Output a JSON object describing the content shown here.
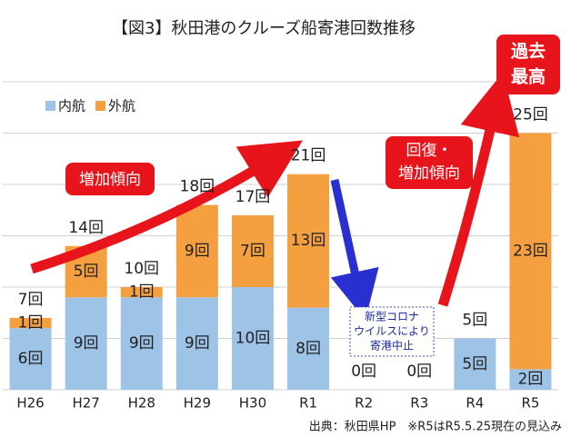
{
  "chart_data": {
    "type": "stacked-bar",
    "title": "【図3】秋田港のクルーズ船寄港回数推移",
    "categories": [
      "H26",
      "H27",
      "H28",
      "H29",
      "H30",
      "R1",
      "R2",
      "R3",
      "R4",
      "R5"
    ],
    "series": [
      {
        "name": "内航",
        "color": "#9dc3e6",
        "values": [
          6,
          9,
          9,
          9,
          10,
          8,
          0,
          0,
          5,
          2
        ],
        "value_labels": [
          "6回",
          "9回",
          "9回",
          "9回",
          "10回",
          "8回",
          "0回",
          "0回",
          "5回",
          "2回"
        ]
      },
      {
        "name": "外航",
        "color": "#f5a040",
        "values": [
          1,
          5,
          1,
          9,
          7,
          13,
          0,
          0,
          0,
          23
        ],
        "value_labels": [
          "1回",
          "5回",
          "1回",
          "9回",
          "7回",
          "13回",
          null,
          null,
          null,
          "23回"
        ]
      }
    ],
    "total_labels": [
      "7回",
      "14回",
      "10回",
      "18回",
      "17回",
      "21回",
      null,
      null,
      "5回",
      "25回"
    ],
    "ylim": [
      0,
      30
    ],
    "yticks": [
      0,
      5,
      10,
      15,
      20,
      25,
      30
    ],
    "grid": true,
    "annotations": {
      "increase": "増加傾向",
      "recovery": [
        "回復・",
        "増加傾向"
      ],
      "record": [
        "過去",
        "最高"
      ],
      "covid": [
        "新型コロナ",
        "ウイルスにより",
        "寄港中止"
      ],
      "source": "出典：秋田県HP　※R5はR5.5.25現在の見込み"
    }
  }
}
